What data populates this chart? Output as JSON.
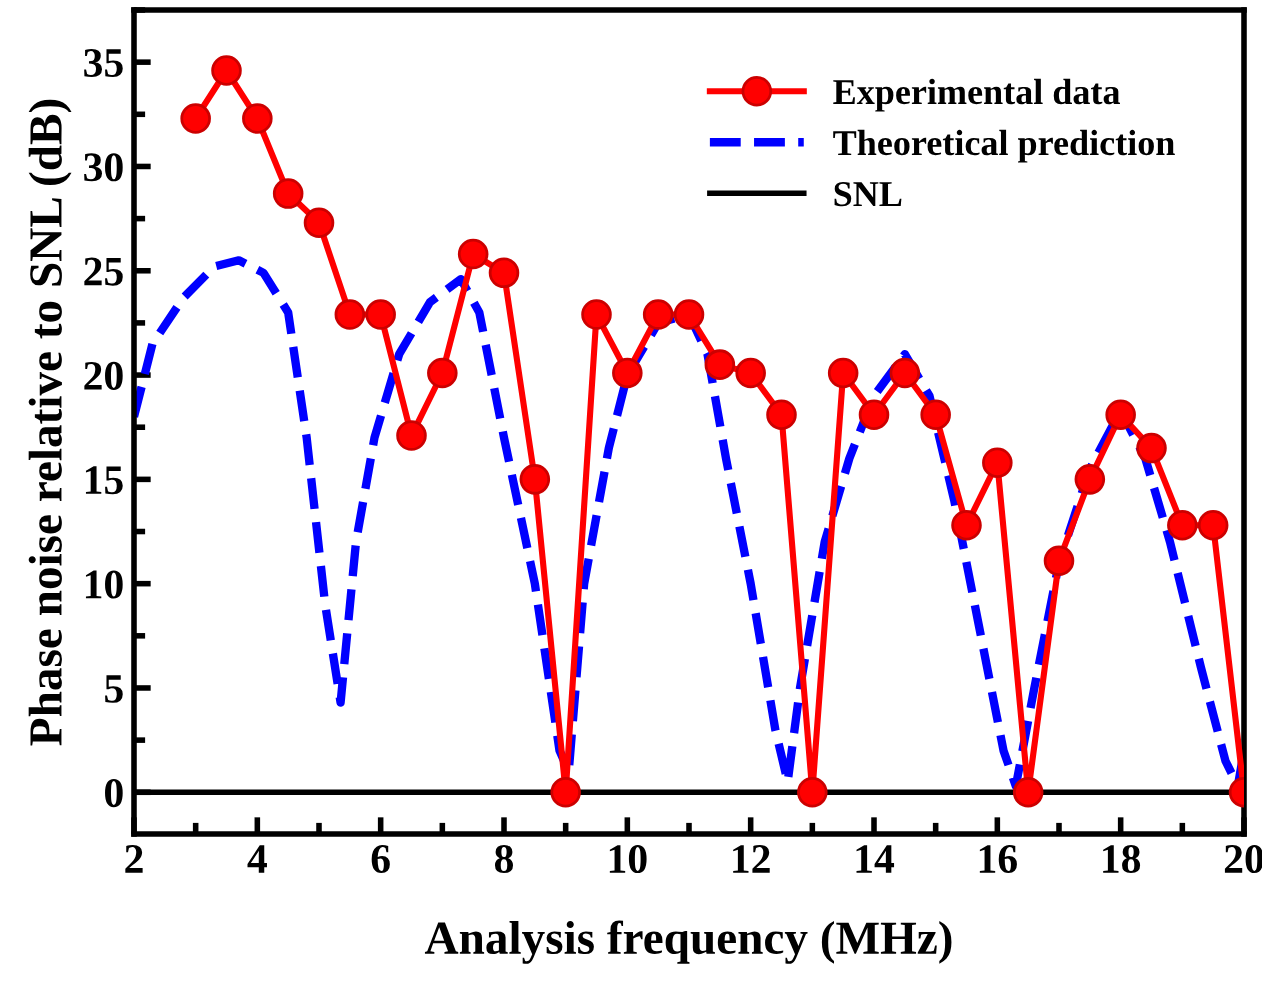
{
  "chart_data": {
    "type": "line",
    "xlabel": "Analysis frequency (MHz)",
    "ylabel": "Phase noise relative to SNL (dB)",
    "xlim": [
      2,
      20
    ],
    "xticks": [
      2,
      4,
      6,
      8,
      10,
      12,
      14,
      16,
      18,
      20
    ],
    "ylim": [
      -2,
      37.5
    ],
    "yticks": [
      0,
      5,
      10,
      15,
      20,
      25,
      30,
      35
    ],
    "grid": false,
    "legend": "top right",
    "series": [
      {
        "name": "Experimental data",
        "color": "#ff0000",
        "marker": "circle",
        "line_style": "solid",
        "x": [
          3,
          3.5,
          4,
          4.5,
          5,
          5.5,
          6,
          6.5,
          7,
          7.5,
          8,
          8.5,
          9,
          9.5,
          10,
          10.5,
          11,
          11.5,
          12,
          12.5,
          13,
          13.5,
          14,
          14.5,
          15,
          15.5,
          16,
          16.5,
          17,
          17.5,
          18,
          18.5,
          19,
          19.5,
          20
        ],
        "values": [
          32.3,
          34.6,
          32.3,
          28.7,
          27.3,
          22.9,
          22.9,
          17.1,
          20.1,
          25.8,
          24.9,
          15.0,
          0,
          22.9,
          20.1,
          22.9,
          22.9,
          20.5,
          20.1,
          18.1,
          0,
          20.1,
          18.1,
          20.1,
          18.1,
          12.8,
          15.8,
          0,
          11.1,
          15.0,
          18.1,
          16.5,
          12.8,
          12.8,
          0
        ]
      },
      {
        "name": "Theoretical prediction",
        "color": "#0000ff",
        "marker": "none",
        "line_style": "dashed",
        "x": [
          2,
          2.3,
          2.8,
          3.3,
          3.7,
          4.1,
          4.5,
          4.8,
          5.1,
          5.35,
          5.6,
          5.9,
          6.3,
          6.8,
          7.3,
          7.6,
          8.0,
          8.5,
          8.9,
          9.05,
          9.3,
          9.7,
          10.0,
          10.5,
          11.0,
          11.3,
          11.6,
          12.0,
          12.4,
          12.6,
          12.8,
          13.2,
          13.6,
          14.0,
          14.5,
          14.9,
          15.3,
          15.7,
          16.1,
          16.3,
          16.6,
          17.0,
          17.5,
          18.0,
          18.4,
          18.8,
          19.3,
          19.7,
          19.9,
          20
        ],
        "values": [
          18,
          21.5,
          23.7,
          25.2,
          25.5,
          24.9,
          23,
          17,
          9,
          4.3,
          12,
          17,
          21,
          23.5,
          24.6,
          23,
          17,
          10,
          2,
          1.0,
          10,
          16.5,
          20,
          22.5,
          22.9,
          21,
          16,
          10,
          3,
          0.5,
          5,
          12,
          16,
          19,
          21,
          19,
          14,
          8,
          2,
          0.3,
          5,
          11,
          15.5,
          18.3,
          16,
          12,
          6,
          1.5,
          0.3,
          2
        ]
      }
    ],
    "ref_lines": [
      {
        "axis": "y",
        "value": 0,
        "label": "SNL",
        "color": "#000000",
        "line_style": "solid"
      }
    ]
  }
}
